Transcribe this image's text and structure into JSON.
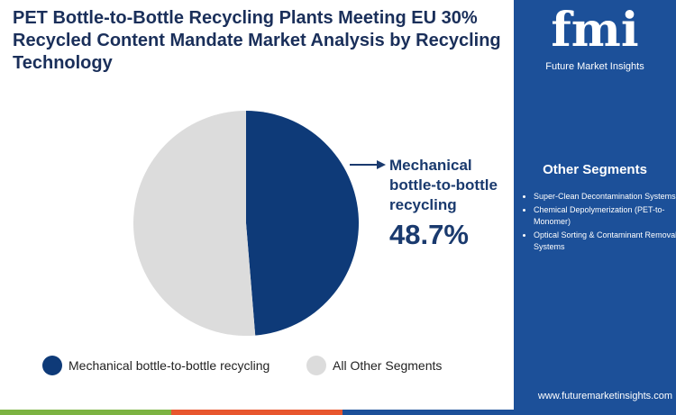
{
  "chart_data": {
    "type": "pie",
    "title": "PET Bottle-to-Bottle Recycling Plants Meeting EU 30% Recycled Content Mandate Market Analysis by Recycling Technology",
    "categories": [
      "Mechanical bottle-to-bottle recycling",
      "All Other Segments"
    ],
    "values": [
      48.7,
      51.3
    ],
    "value_labels": [
      "48.7%",
      null
    ],
    "colors": [
      "#0e3a78",
      "#dcdcdc"
    ]
  },
  "logo": {
    "text": "fmi",
    "tagline": "Future Market Insights"
  },
  "sidebar": {
    "title": "Other Segments",
    "items": [
      "Super-Clean Decontamination Systems",
      "Chemical Depolymerization (PET-to-Monomer)",
      "Optical Sorting & Contaminant Removal Systems"
    ],
    "website": "www.futuremarketinsights.com"
  }
}
